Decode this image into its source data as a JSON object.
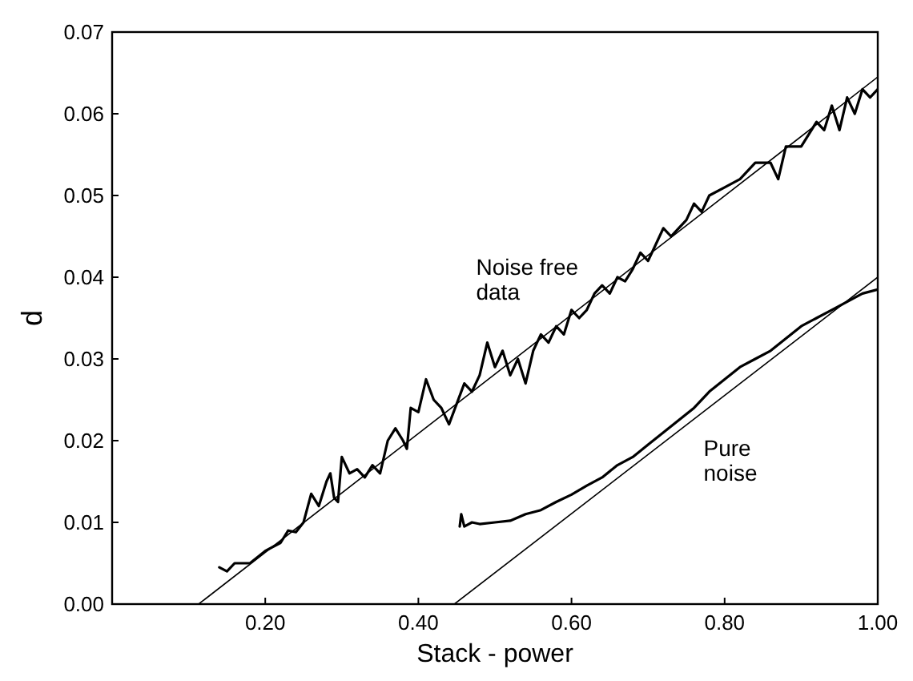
{
  "chart_data": {
    "type": "line",
    "xlabel": "Stack - power",
    "ylabel": "d",
    "xlim": [
      0,
      1
    ],
    "ylim": [
      0,
      0.07
    ],
    "xticks": [
      {
        "value": 0.2,
        "label": "0.20"
      },
      {
        "value": 0.4,
        "label": "0.40"
      },
      {
        "value": 0.6,
        "label": "0.60"
      },
      {
        "value": 0.8,
        "label": "0.80"
      },
      {
        "value": 1,
        "label": "1.00"
      }
    ],
    "yticks": [
      {
        "value": 0,
        "label": "0.00"
      },
      {
        "value": 0.01,
        "label": "0.01"
      },
      {
        "value": 0.02,
        "label": "0.02"
      },
      {
        "value": 0.03,
        "label": "0.03"
      },
      {
        "value": 0.04,
        "label": "0.04"
      },
      {
        "value": 0.05,
        "label": "0.05"
      },
      {
        "value": 0.06,
        "label": "0.06"
      },
      {
        "value": 0.07,
        "label": "0.07"
      }
    ],
    "grid": false,
    "marker": "none",
    "line_style": "solid",
    "series": [
      {
        "name": "Noise free data",
        "color": "#000000",
        "x": [
          0.14,
          0.15,
          0.16,
          0.18,
          0.2,
          0.22,
          0.23,
          0.24,
          0.25,
          0.26,
          0.27,
          0.28,
          0.285,
          0.29,
          0.295,
          0.3,
          0.31,
          0.32,
          0.33,
          0.34,
          0.35,
          0.36,
          0.37,
          0.38,
          0.385,
          0.39,
          0.4,
          0.41,
          0.42,
          0.43,
          0.44,
          0.45,
          0.46,
          0.47,
          0.48,
          0.49,
          0.5,
          0.51,
          0.52,
          0.53,
          0.54,
          0.55,
          0.56,
          0.57,
          0.58,
          0.59,
          0.6,
          0.61,
          0.62,
          0.63,
          0.64,
          0.65,
          0.66,
          0.67,
          0.68,
          0.69,
          0.7,
          0.71,
          0.72,
          0.73,
          0.74,
          0.75,
          0.76,
          0.77,
          0.78,
          0.8,
          0.82,
          0.84,
          0.86,
          0.87,
          0.88,
          0.9,
          0.92,
          0.93,
          0.94,
          0.95,
          0.96,
          0.97,
          0.98,
          0.99,
          1.0
        ],
        "values": [
          0.0045,
          0.004,
          0.005,
          0.005,
          0.0065,
          0.0075,
          0.009,
          0.0088,
          0.01,
          0.0135,
          0.012,
          0.015,
          0.016,
          0.013,
          0.0125,
          0.018,
          0.016,
          0.0165,
          0.0155,
          0.017,
          0.016,
          0.02,
          0.0215,
          0.02,
          0.019,
          0.024,
          0.0235,
          0.0275,
          0.025,
          0.024,
          0.022,
          0.0245,
          0.027,
          0.026,
          0.028,
          0.032,
          0.029,
          0.031,
          0.028,
          0.03,
          0.027,
          0.031,
          0.033,
          0.032,
          0.034,
          0.033,
          0.036,
          0.035,
          0.036,
          0.038,
          0.039,
          0.038,
          0.04,
          0.0395,
          0.041,
          0.043,
          0.042,
          0.044,
          0.046,
          0.045,
          0.046,
          0.047,
          0.049,
          0.048,
          0.05,
          0.051,
          0.052,
          0.054,
          0.054,
          0.052,
          0.056,
          0.056,
          0.059,
          0.058,
          0.061,
          0.058,
          0.062,
          0.06,
          0.063,
          0.062,
          0.063
        ]
      },
      {
        "name": "Pure noise",
        "color": "#000000",
        "x": [
          0.454,
          0.456,
          0.46,
          0.47,
          0.48,
          0.5,
          0.52,
          0.54,
          0.56,
          0.58,
          0.6,
          0.62,
          0.64,
          0.66,
          0.68,
          0.7,
          0.72,
          0.74,
          0.76,
          0.78,
          0.8,
          0.82,
          0.84,
          0.86,
          0.88,
          0.9,
          0.92,
          0.94,
          0.96,
          0.98,
          1.0
        ],
        "values": [
          0.0095,
          0.011,
          0.0095,
          0.01,
          0.0098,
          0.01,
          0.0102,
          0.011,
          0.0115,
          0.0125,
          0.0134,
          0.0145,
          0.0155,
          0.017,
          0.018,
          0.0195,
          0.021,
          0.0225,
          0.024,
          0.026,
          0.0275,
          0.029,
          0.03,
          0.031,
          0.0325,
          0.034,
          0.035,
          0.036,
          0.037,
          0.038,
          0.0385
        ]
      },
      {
        "color": "#000000",
        "x": [
          0.113,
          1.0
        ],
        "values": [
          0,
          0.0645
        ]
      },
      {
        "color": "#000000",
        "x": [
          0.447,
          1.0
        ],
        "values": [
          0,
          0.04
        ]
      }
    ]
  }
}
